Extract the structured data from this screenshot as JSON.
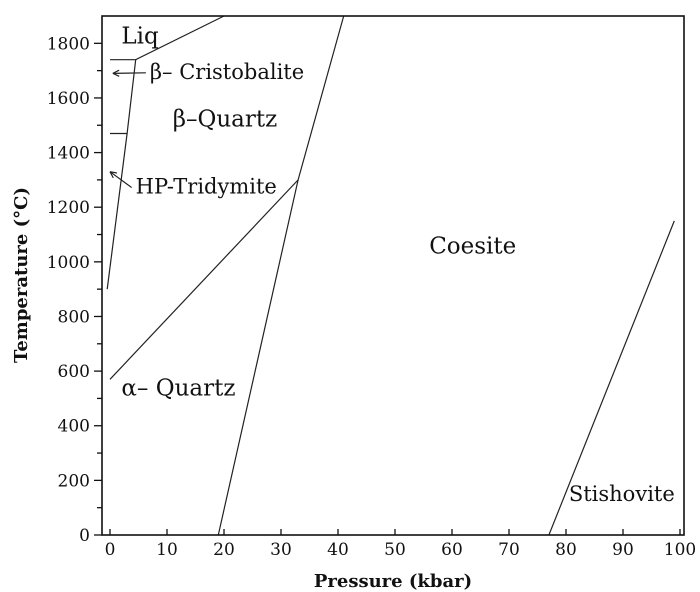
{
  "chart_data": {
    "type": "line",
    "title": "",
    "xlabel": "Pressure (kbar)",
    "ylabel": "Temperature (°C)",
    "xlim": [
      0,
      100
    ],
    "ylim": [
      0,
      1900
    ],
    "x_ticks": [
      0,
      10,
      20,
      30,
      40,
      50,
      60,
      70,
      80,
      90,
      100
    ],
    "y_ticks": [
      0,
      200,
      400,
      600,
      800,
      1000,
      1200,
      1400,
      1600,
      1800
    ],
    "grid": false,
    "series": [
      {
        "id": "liquidus",
        "points": [
          [
            0,
            1740
          ],
          [
            4.5,
            1740
          ],
          [
            20,
            1900
          ]
        ]
      },
      {
        "id": "cristobalite_quartz",
        "points": [
          [
            0,
            1470
          ],
          [
            3,
            1470
          ],
          [
            4.5,
            1740
          ]
        ]
      },
      {
        "id": "tridymite_quartz",
        "points": [
          [
            -0.5,
            900
          ],
          [
            3,
            1470
          ]
        ]
      },
      {
        "id": "alpha_beta_quartz",
        "points": [
          [
            0,
            570
          ],
          [
            33,
            1300
          ]
        ]
      },
      {
        "id": "quartz_coesite",
        "points": [
          [
            19,
            0
          ],
          [
            33,
            1300
          ],
          [
            41,
            1900
          ]
        ]
      },
      {
        "id": "coesite_stishovite",
        "points": [
          [
            77,
            0
          ],
          [
            99,
            1150
          ]
        ]
      }
    ],
    "labels": [
      {
        "id": "liq",
        "text": "Liq",
        "x": 2,
        "y": 1800,
        "size": "big"
      },
      {
        "id": "cristobalite",
        "text": "β– Cristobalite",
        "x": 7,
        "y": 1670,
        "arrow_to": [
          0.5,
          1690
        ]
      },
      {
        "id": "beta_quartz",
        "text": "β–Quartz",
        "x": 11,
        "y": 1495,
        "size": "big"
      },
      {
        "id": "tridymite",
        "text": "HP-Tridymite",
        "x": 4.5,
        "y": 1250,
        "arrow_to": [
          0,
          1330
        ]
      },
      {
        "id": "coesite",
        "text": "Coesite",
        "x": 56,
        "y": 1030,
        "size": "big"
      },
      {
        "id": "alpha_quartz",
        "text": "α– Quartz",
        "x": 2,
        "y": 510,
        "size": "big"
      },
      {
        "id": "stishovite",
        "text": "Stishovite",
        "x": 80.5,
        "y": 125,
        "size": "normal"
      }
    ]
  }
}
